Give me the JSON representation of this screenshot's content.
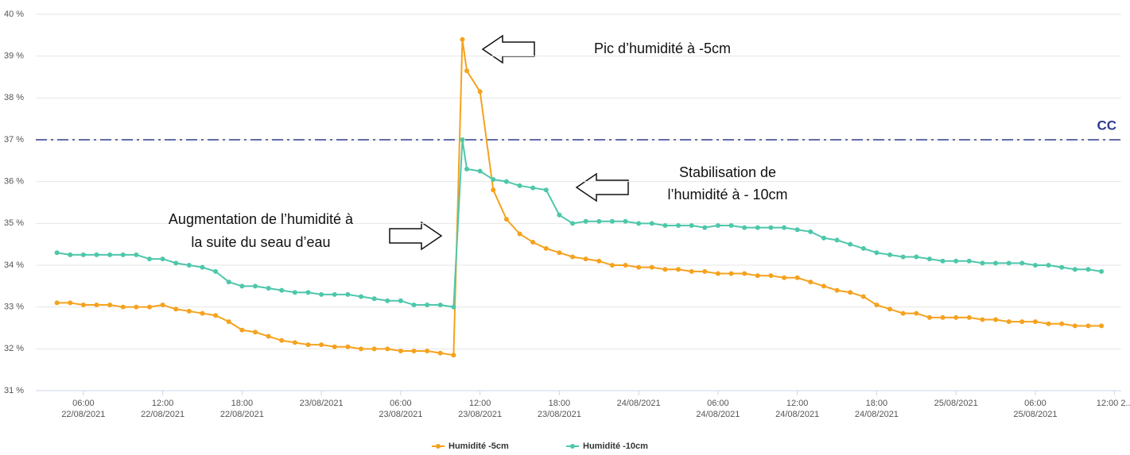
{
  "chart_data": {
    "type": "line",
    "x": [
      "22/08/2021 04:00",
      "22/08/2021 05:00",
      "22/08/2021 06:00",
      "22/08/2021 07:00",
      "22/08/2021 08:00",
      "22/08/2021 09:00",
      "22/08/2021 10:00",
      "22/08/2021 11:00",
      "22/08/2021 12:00",
      "22/08/2021 13:00",
      "22/08/2021 14:00",
      "22/08/2021 15:00",
      "22/08/2021 16:00",
      "22/08/2021 17:00",
      "22/08/2021 18:00",
      "22/08/2021 19:00",
      "22/08/2021 20:00",
      "22/08/2021 21:00",
      "22/08/2021 22:00",
      "22/08/2021 23:00",
      "23/08/2021 00:00",
      "23/08/2021 01:00",
      "23/08/2021 02:00",
      "23/08/2021 03:00",
      "23/08/2021 04:00",
      "23/08/2021 05:00",
      "23/08/2021 06:00",
      "23/08/2021 07:00",
      "23/08/2021 08:00",
      "23/08/2021 09:00",
      "23/08/2021 10:00",
      "23/08/2021 10:40",
      "23/08/2021 11:00",
      "23/08/2021 12:00",
      "23/08/2021 13:00",
      "23/08/2021 14:00",
      "23/08/2021 15:00",
      "23/08/2021 16:00",
      "23/08/2021 17:00",
      "23/08/2021 18:00",
      "23/08/2021 19:00",
      "23/08/2021 20:00",
      "23/08/2021 21:00",
      "23/08/2021 22:00",
      "23/08/2021 23:00",
      "24/08/2021 00:00",
      "24/08/2021 01:00",
      "24/08/2021 02:00",
      "24/08/2021 03:00",
      "24/08/2021 04:00",
      "24/08/2021 05:00",
      "24/08/2021 06:00",
      "24/08/2021 07:00",
      "24/08/2021 08:00",
      "24/08/2021 09:00",
      "24/08/2021 10:00",
      "24/08/2021 11:00",
      "24/08/2021 12:00",
      "24/08/2021 13:00",
      "24/08/2021 14:00",
      "24/08/2021 15:00",
      "24/08/2021 16:00",
      "24/08/2021 17:00",
      "24/08/2021 18:00",
      "24/08/2021 19:00",
      "24/08/2021 20:00",
      "24/08/2021 21:00",
      "24/08/2021 22:00",
      "24/08/2021 23:00",
      "25/08/2021 00:00",
      "25/08/2021 01:00",
      "25/08/2021 02:00",
      "25/08/2021 03:00",
      "25/08/2021 04:00",
      "25/08/2021 05:00",
      "25/08/2021 06:00",
      "25/08/2021 07:00",
      "25/08/2021 08:00",
      "25/08/2021 09:00",
      "25/08/2021 10:00",
      "25/08/2021 11:00"
    ],
    "series": [
      {
        "name": "Humidité -5cm",
        "color": "#f5a21e",
        "values": [
          33.1,
          33.1,
          33.05,
          33.05,
          33.05,
          33.0,
          33.0,
          33.0,
          33.05,
          32.95,
          32.9,
          32.85,
          32.8,
          32.65,
          32.45,
          32.4,
          32.3,
          32.2,
          32.15,
          32.1,
          32.1,
          32.05,
          32.05,
          32.0,
          32.0,
          32.0,
          31.95,
          31.95,
          31.95,
          31.9,
          31.85,
          39.4,
          38.65,
          38.15,
          35.8,
          35.1,
          34.75,
          34.55,
          34.4,
          34.3,
          34.2,
          34.15,
          34.1,
          34.0,
          34.0,
          33.95,
          33.95,
          33.9,
          33.9,
          33.85,
          33.85,
          33.8,
          33.8,
          33.8,
          33.75,
          33.75,
          33.7,
          33.7,
          33.6,
          33.5,
          33.4,
          33.35,
          33.25,
          33.05,
          32.95,
          32.85,
          32.85,
          32.75,
          32.75,
          32.75,
          32.75,
          32.7,
          32.7,
          32.65,
          32.65,
          32.65,
          32.6,
          32.6,
          32.55,
          32.55,
          32.55
        ]
      },
      {
        "name": "Humidité -10cm",
        "color": "#4ec7aa",
        "values": [
          34.3,
          34.25,
          34.25,
          34.25,
          34.25,
          34.25,
          34.25,
          34.15,
          34.15,
          34.05,
          34.0,
          33.95,
          33.85,
          33.6,
          33.5,
          33.5,
          33.45,
          33.4,
          33.35,
          33.35,
          33.3,
          33.3,
          33.3,
          33.25,
          33.2,
          33.15,
          33.15,
          33.05,
          33.05,
          33.05,
          33.0,
          37.0,
          36.3,
          36.25,
          36.05,
          36.0,
          35.9,
          35.85,
          35.8,
          35.2,
          35.0,
          35.05,
          35.05,
          35.05,
          35.05,
          35.0,
          35.0,
          34.95,
          34.95,
          34.95,
          34.9,
          34.95,
          34.95,
          34.9,
          34.9,
          34.9,
          34.9,
          34.85,
          34.8,
          34.65,
          34.6,
          34.5,
          34.4,
          34.3,
          34.25,
          34.2,
          34.2,
          34.15,
          34.1,
          34.1,
          34.1,
          34.05,
          34.05,
          34.05,
          34.05,
          34.0,
          34.0,
          33.95,
          33.9,
          33.9,
          33.85
        ]
      }
    ],
    "xlim": [
      "22/08/2021 02:24",
      "25/08/2021 12:30"
    ],
    "xticks": [
      {
        "value": "22/08/2021 06:00",
        "label": [
          "06:00",
          "22/08/2021"
        ]
      },
      {
        "value": "22/08/2021 12:00",
        "label": [
          "12:00",
          "22/08/2021"
        ]
      },
      {
        "value": "22/08/2021 18:00",
        "label": [
          "18:00",
          "22/08/2021"
        ]
      },
      {
        "value": "23/08/2021 00:00",
        "label": [
          "23/08/2021"
        ]
      },
      {
        "value": "23/08/2021 06:00",
        "label": [
          "06:00",
          "23/08/2021"
        ]
      },
      {
        "value": "23/08/2021 12:00",
        "label": [
          "12:00",
          "23/08/2021"
        ]
      },
      {
        "value": "23/08/2021 18:00",
        "label": [
          "18:00",
          "23/08/2021"
        ]
      },
      {
        "value": "24/08/2021 00:00",
        "label": [
          "24/08/2021"
        ]
      },
      {
        "value": "24/08/2021 06:00",
        "label": [
          "06:00",
          "24/08/2021"
        ]
      },
      {
        "value": "24/08/2021 12:00",
        "label": [
          "12:00",
          "24/08/2021"
        ]
      },
      {
        "value": "24/08/2021 18:00",
        "label": [
          "18:00",
          "24/08/2021"
        ]
      },
      {
        "value": "25/08/2021 00:00",
        "label": [
          "25/08/2021"
        ]
      },
      {
        "value": "25/08/2021 06:00",
        "label": [
          "06:00",
          "25/08/2021"
        ]
      },
      {
        "value": "25/08/2021 12:00",
        "label": [
          "12:00 2..."
        ]
      }
    ],
    "ylim": [
      31,
      40
    ],
    "yticks": [
      {
        "value": 31,
        "label": "31 %"
      },
      {
        "value": 32,
        "label": "32 %"
      },
      {
        "value": 33,
        "label": "33 %"
      },
      {
        "value": 34,
        "label": "34 %"
      },
      {
        "value": 35,
        "label": "35 %"
      },
      {
        "value": 36,
        "label": "36 %"
      },
      {
        "value": 37,
        "label": "37 %"
      },
      {
        "value": 38,
        "label": "38 %"
      },
      {
        "value": 39,
        "label": "39 %"
      },
      {
        "value": 40,
        "label": "40 %"
      }
    ],
    "grid": true,
    "legend": "bottom",
    "reference_line": {
      "value": 37,
      "label": "CC",
      "color": "#2e3b8f"
    },
    "annotations": [
      {
        "lines": [
          "Pic d’humidité à -5cm"
        ]
      },
      {
        "lines": [
          "Stabilisation de",
          "l’humidité à - 10cm"
        ]
      },
      {
        "lines": [
          "Augmentation de l’humidité à",
          "la suite du seau d’eau"
        ]
      }
    ]
  }
}
